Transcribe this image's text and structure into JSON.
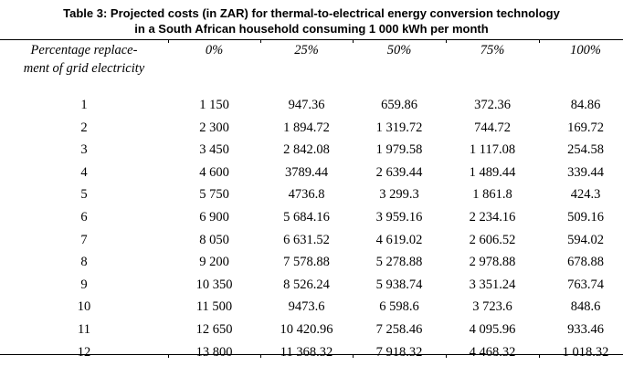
{
  "title": {
    "line1": "Table 3: Projected costs (in ZAR) for thermal-to-electrical energy conversion technology",
    "line2": "in a South African household consuming 1 000 kWh per month"
  },
  "table": {
    "headers": [
      "Percentage replace-",
      "ment of grid electricity",
      "0%",
      "25%",
      "50%",
      "75%",
      "100%"
    ],
    "rows": [
      [
        "1",
        "1 150",
        "947.36",
        "659.86",
        "372.36",
        "84.86"
      ],
      [
        "2",
        "2 300",
        "1 894.72",
        "1 319.72",
        "744.72",
        "169.72"
      ],
      [
        "3",
        "3 450",
        "2 842.08",
        "1 979.58",
        "1 117.08",
        "254.58"
      ],
      [
        "4",
        "4 600",
        "3789.44",
        "2 639.44",
        "1 489.44",
        "339.44"
      ],
      [
        "5",
        "5 750",
        "4736.8",
        "3 299.3",
        "1 861.8",
        "424.3"
      ],
      [
        "6",
        "6 900",
        "5 684.16",
        "3 959.16",
        "2 234.16",
        "509.16"
      ],
      [
        "7",
        "8 050",
        "6 631.52",
        "4 619.02",
        "2 606.52",
        "594.02"
      ],
      [
        "8",
        "9 200",
        "7 578.88",
        "5 278.88",
        "2 978.88",
        "678.88"
      ],
      [
        "9",
        "10 350",
        "8 526.24",
        "5 938.74",
        "3 351.24",
        "763.74"
      ],
      [
        "10",
        "11 500",
        "9473.6",
        "6 598.6",
        "3 723.6",
        "848.6"
      ],
      [
        "11",
        "12 650",
        "10 420.96",
        "7 258.46",
        "4 095.96",
        "933.46"
      ],
      [
        "12",
        "13 800",
        "11 368.32",
        "7 918.32",
        "4 468.32",
        "1 018.32"
      ]
    ]
  }
}
